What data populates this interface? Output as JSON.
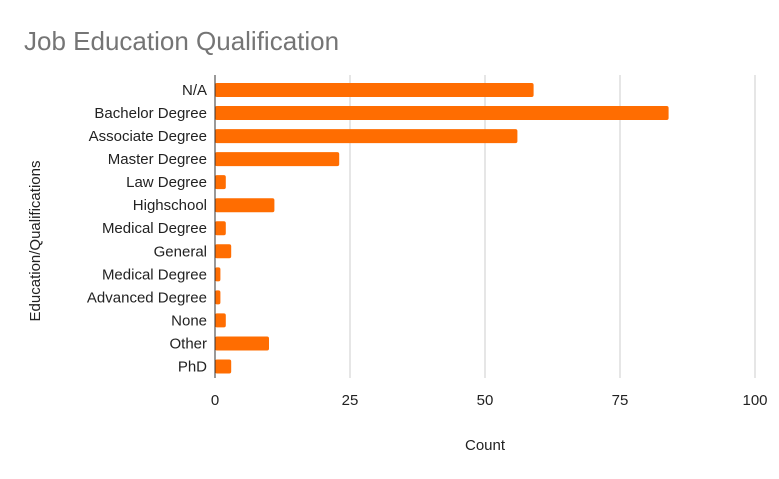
{
  "chart_data": {
    "type": "bar",
    "orientation": "horizontal",
    "title": "Job Education Qualification",
    "xlabel": "Count",
    "ylabel": "Education/Qualifications",
    "xlim": [
      0,
      100
    ],
    "xticks": [
      "0",
      "25",
      "50",
      "75",
      "100"
    ],
    "grid": true,
    "legend": "none",
    "categories": [
      "N/A",
      "Bachelor Degree",
      "Associate Degree",
      "Master Degree",
      "Law Degree",
      "Highschool",
      "Medical Degree",
      "General",
      "Medical Degree",
      "Advanced Degree",
      "None",
      "Other",
      "PhD"
    ],
    "values": [
      59,
      84,
      56,
      23,
      2,
      11,
      2,
      3,
      1,
      1,
      2,
      10,
      3
    ],
    "bar_color": "#ff6d01"
  }
}
